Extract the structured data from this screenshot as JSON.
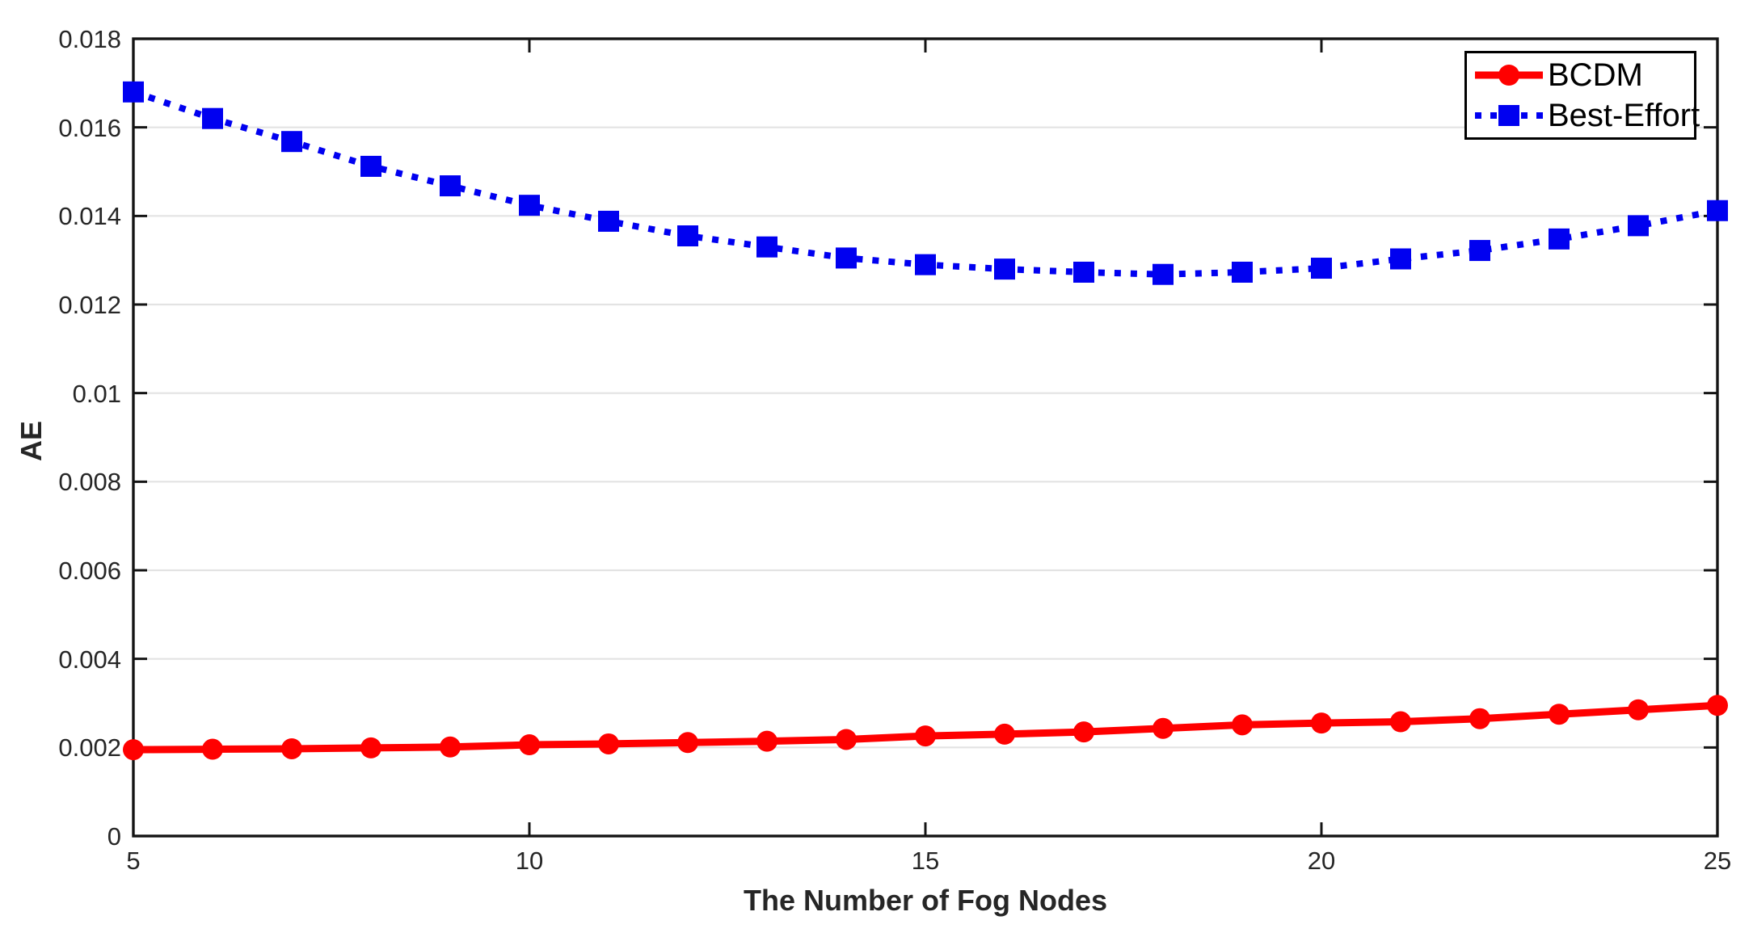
{
  "figure": {
    "background": "#ffffff"
  },
  "colors": {
    "axis_frame": "#141414",
    "grid": "#e3e3e3",
    "tick_text": "#262626",
    "bcdm_red": "#ff0000",
    "best_effort_blue": "#0000f0",
    "legend_border": "#000000",
    "legend_background": "#ffffff"
  },
  "chart_data": {
    "type": "line",
    "title": "",
    "xlabel": "The Number of Fog Nodes",
    "ylabel": "AE",
    "xlim": [
      5,
      25
    ],
    "ylim": [
      0,
      0.018
    ],
    "grid": "horizontal-only",
    "legend_position": "top-right",
    "xticks": [
      5,
      10,
      15,
      20,
      25
    ],
    "ytick_values": [
      0,
      0.002,
      0.004,
      0.006,
      0.008,
      0.01,
      0.012,
      0.014,
      0.016,
      0.018
    ],
    "ytick_labels": [
      "0",
      "0.002",
      "0.004",
      "0.006",
      "0.008",
      "0.01",
      "0.012",
      "0.014",
      "0.016",
      "0.018"
    ],
    "x": [
      5,
      6,
      7,
      8,
      9,
      10,
      11,
      12,
      13,
      14,
      15,
      16,
      17,
      18,
      19,
      20,
      21,
      22,
      23,
      24,
      25
    ],
    "series": [
      {
        "name": "BCDM",
        "color": "#ff0000",
        "line_style": "solid",
        "marker": "circle",
        "values": [
          0.00195,
          0.00196,
          0.00197,
          0.00199,
          0.00201,
          0.00206,
          0.00208,
          0.00211,
          0.00214,
          0.00218,
          0.00226,
          0.0023,
          0.00235,
          0.00243,
          0.00251,
          0.00255,
          0.00258,
          0.00265,
          0.00275,
          0.00285,
          0.00295
        ]
      },
      {
        "name": "Best-Effort",
        "color": "#0000f0",
        "line_style": "dotted",
        "marker": "square",
        "values": [
          0.0168,
          0.0162,
          0.01568,
          0.01512,
          0.01468,
          0.01424,
          0.01388,
          0.01355,
          0.0133,
          0.01305,
          0.0129,
          0.0128,
          0.01273,
          0.01268,
          0.01273,
          0.01282,
          0.01303,
          0.01322,
          0.01348,
          0.01378,
          0.01412
        ]
      }
    ]
  }
}
